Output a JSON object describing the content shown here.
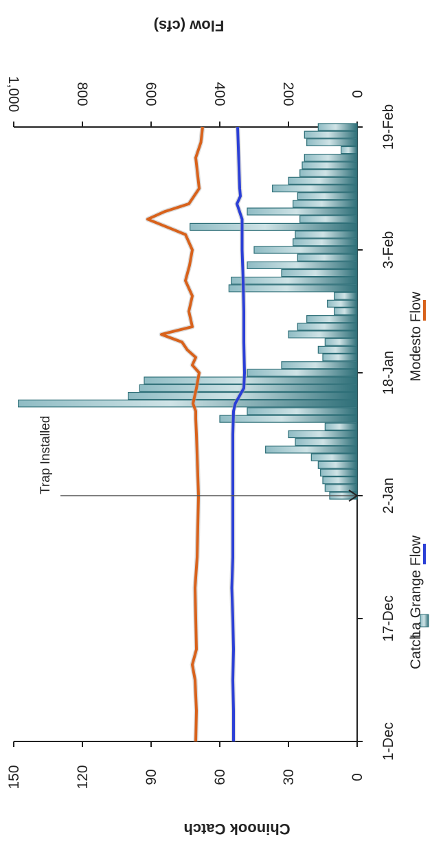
{
  "chart_data": {
    "type": "bar",
    "orientation_note": "rotated",
    "left_axis": {
      "title": "Chinook Catch",
      "ticks": [
        "0",
        "30",
        "60",
        "90",
        "120",
        "150"
      ],
      "range": [
        0,
        150
      ]
    },
    "right_axis": {
      "title": "Flow (cfs)",
      "ticks": [
        "0",
        "200",
        "400",
        "600",
        "800",
        "1,000"
      ],
      "range": [
        0,
        1000
      ]
    },
    "x_ticks": [
      "1-Dec",
      "17-Dec",
      "2-Jan",
      "18-Jan",
      "3-Feb",
      "19-Feb"
    ],
    "x_range_days": [
      0,
      80
    ],
    "annotation": {
      "text": "Trap Installed",
      "day": 32
    },
    "legend": [
      "Catch",
      "La Grange Flow",
      "Modesto Flow"
    ],
    "colors": {
      "catch": "#2e6f78",
      "catch_light": "#8fbcc4",
      "la_grange": "#2b3fd6",
      "modesto": "#d8621c"
    },
    "series": [
      {
        "name": "Catch",
        "kind": "bar",
        "days": [
          32,
          33,
          34,
          35,
          36,
          37,
          38,
          39,
          40,
          41,
          42,
          43,
          44,
          45,
          46,
          47,
          48,
          49,
          50,
          51,
          52,
          53,
          54,
          55,
          56,
          57,
          58,
          59,
          60,
          61,
          62,
          63,
          64,
          65,
          66,
          67,
          68,
          69,
          70,
          71,
          72,
          73,
          74,
          75,
          76,
          77,
          78,
          79,
          80
        ],
        "values": [
          12,
          14,
          15,
          16,
          17,
          20,
          40,
          27,
          30,
          14,
          60,
          48,
          148,
          100,
          95,
          93,
          48,
          33,
          15,
          17,
          14,
          30,
          26,
          22,
          10,
          13,
          10,
          56,
          55,
          33,
          48,
          26,
          45,
          28,
          27,
          73,
          25,
          48,
          28,
          26,
          37,
          30,
          25,
          24,
          23,
          7,
          22,
          23,
          17
        ]
      },
      {
        "name": "La Grange Flow",
        "kind": "line",
        "days": [
          0,
          4,
          8,
          12,
          16,
          20,
          24,
          28,
          32,
          36,
          40,
          43,
          44,
          46,
          48,
          52,
          56,
          60,
          64,
          68,
          70,
          71,
          72,
          76,
          80
        ],
        "values": [
          360,
          360,
          362,
          360,
          362,
          365,
          362,
          362,
          362,
          362,
          362,
          360,
          355,
          330,
          328,
          330,
          330,
          332,
          335,
          335,
          350,
          340,
          342,
          345,
          348
        ]
      },
      {
        "name": "Modesto Flow",
        "kind": "line",
        "days": [
          0,
          4,
          8,
          10,
          12,
          16,
          20,
          24,
          28,
          32,
          36,
          40,
          42,
          43,
          44,
          46,
          48,
          49,
          50,
          51,
          52,
          53,
          54,
          56,
          58,
          60,
          62,
          64,
          66,
          68,
          69,
          70,
          72,
          76,
          78,
          80
        ],
        "values": [
          470,
          468,
          472,
          480,
          468,
          470,
          472,
          466,
          464,
          462,
          465,
          468,
          470,
          470,
          478,
          468,
          460,
          480,
          470,
          495,
          510,
          570,
          480,
          490,
          480,
          500,
          488,
          480,
          500,
          610,
          560,
          490,
          460,
          470,
          455,
          450
        ]
      }
    ]
  }
}
